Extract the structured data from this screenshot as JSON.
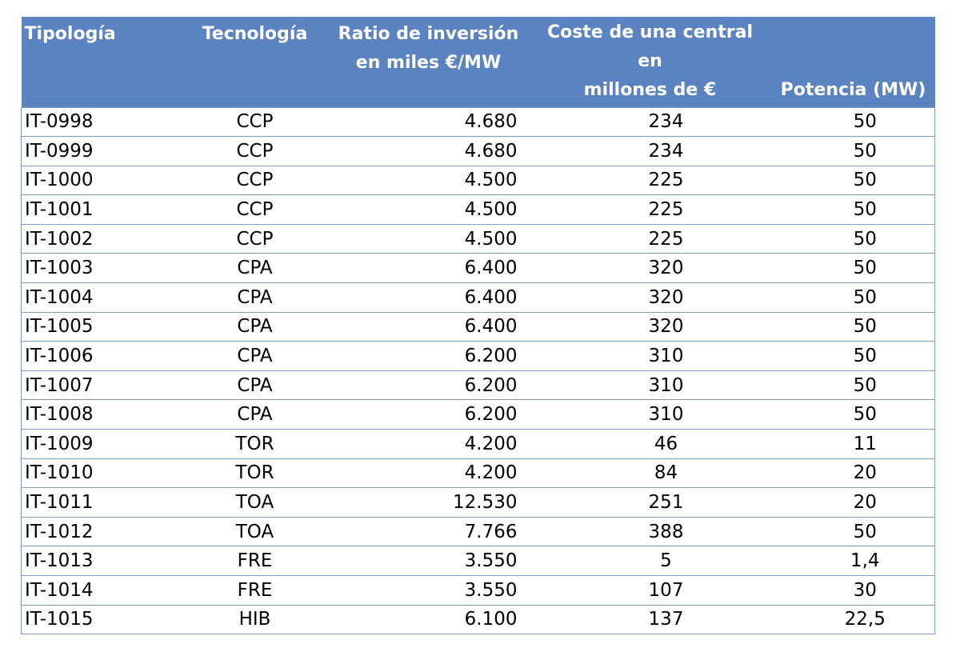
{
  "table": {
    "headers": {
      "tipologia": "Tipología",
      "tecnologia": "Tecnología",
      "ratio_line1": "Ratio de inversión",
      "ratio_line2": "en miles €/MW",
      "coste_line1": "Coste de una central en",
      "coste_line2": "millones de €",
      "potencia": "Potencia (MW)"
    },
    "rows": [
      [
        "IT-0998",
        "CCP",
        "4.680",
        "234",
        "50"
      ],
      [
        "IT-0999",
        "CCP",
        "4.680",
        "234",
        "50"
      ],
      [
        "IT-1000",
        "CCP",
        "4.500",
        "225",
        "50"
      ],
      [
        "IT-1001",
        "CCP",
        "4.500",
        "225",
        "50"
      ],
      [
        "IT-1002",
        "CCP",
        "4.500",
        "225",
        "50"
      ],
      [
        "IT-1003",
        "CPA",
        "6.400",
        "320",
        "50"
      ],
      [
        "IT-1004",
        "CPA",
        "6.400",
        "320",
        "50"
      ],
      [
        "IT-1005",
        "CPA",
        "6.400",
        "320",
        "50"
      ],
      [
        "IT-1006",
        "CPA",
        "6.200",
        "310",
        "50"
      ],
      [
        "IT-1007",
        "CPA",
        "6.200",
        "310",
        "50"
      ],
      [
        "IT-1008",
        "CPA",
        "6.200",
        "310",
        "50"
      ],
      [
        "IT-1009",
        "TOR",
        "4.200",
        "46",
        "11"
      ],
      [
        "IT-1010",
        "TOR",
        "4.200",
        "84",
        "20"
      ],
      [
        "IT-1011",
        "TOA",
        "12.530",
        "251",
        "20"
      ],
      [
        "IT-1012",
        "TOA",
        "7.766",
        "388",
        "50"
      ],
      [
        "IT-1013",
        "FRE",
        "3.550",
        "5",
        "1,4"
      ],
      [
        "IT-1014",
        "FRE",
        "3.550",
        "107",
        "30"
      ],
      [
        "IT-1015",
        "HIB",
        "6.100",
        "137",
        "22,5"
      ]
    ]
  },
  "colors": {
    "header_bg": "#5b82c1",
    "header_text": "#ffffff",
    "row_border": "#7b9bd0"
  }
}
